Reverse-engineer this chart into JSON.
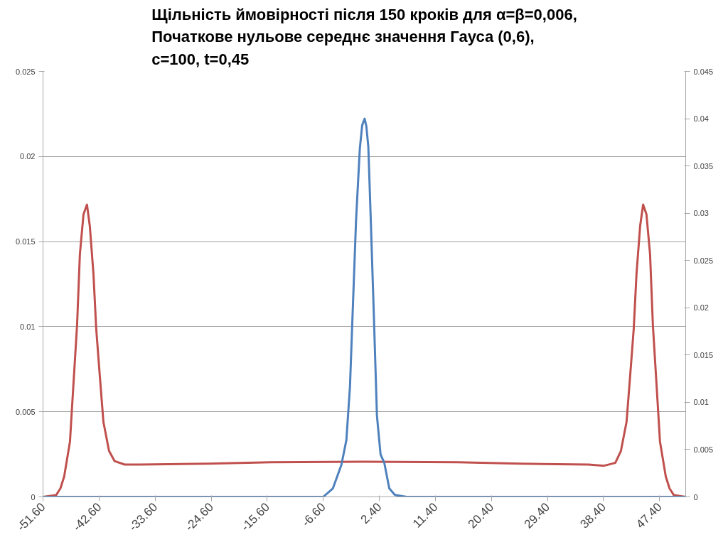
{
  "chart_data": {
    "type": "line",
    "title": "Щільність ймовірності після 150 кроків для α=β=0,006,\nПочаткове нульове середнє значення Гауса (0,6),\nc=100, t=0,45",
    "series": [
      {
        "color": "#c0504d",
        "x": [
          -51.6,
          -49.5,
          -48.8,
          -48.2,
          -47.27,
          -46.9,
          -46.13,
          -45.68,
          -45.1,
          -44.54,
          -44.08,
          -43.5,
          -43.06,
          -42.5,
          -41.9,
          -41.0,
          -40.1,
          -38.5,
          -36,
          -25,
          -15,
          0,
          15,
          25,
          36,
          38.5,
          40.3,
          41.2,
          42.1,
          42.7,
          43.26,
          43.7,
          44.28,
          44.76,
          45.3,
          45.88,
          46.33,
          47.1,
          47.47,
          48.4,
          49.0,
          49.7,
          51.6
        ],
        "values": [
          0,
          0.0001,
          0.0005,
          0.0012,
          0.00325,
          0.0055,
          0.0101,
          0.01425,
          0.0166,
          0.01717,
          0.0159,
          0.0131,
          0.0099,
          0.0072,
          0.0044,
          0.0027,
          0.0021,
          0.0019,
          0.0019,
          0.00195,
          0.00203,
          0.00207,
          0.00203,
          0.00195,
          0.0019,
          0.00183,
          0.002,
          0.0027,
          0.0044,
          0.0072,
          0.0099,
          0.0131,
          0.0159,
          0.01717,
          0.0166,
          0.01425,
          0.0101,
          0.0055,
          0.00325,
          0.0012,
          0.0005,
          0.0001,
          0
        ]
      },
      {
        "color": "#4f81bd",
        "axis": "y2",
        "x": [
          -51.6,
          -6.6,
          -5.05,
          -3.68,
          -2.89,
          -2.31,
          -1.91,
          -1.33,
          -0.73,
          -0.35,
          0.05,
          0.32,
          0.64,
          1.03,
          1.54,
          2.02,
          2.6,
          3.2,
          4.0,
          4.9,
          6.8,
          51.6
        ],
        "values": [
          0,
          0,
          0.0009,
          0.0034,
          0.006,
          0.01165,
          0.0189,
          0.0293,
          0.0368,
          0.0393,
          0.04,
          0.0392,
          0.037,
          0.0293,
          0.0189,
          0.0086,
          0.0045,
          0.0036,
          0.0009,
          0.0002,
          0,
          0
        ]
      }
    ],
    "xlim": [
      -51.6,
      51.6
    ],
    "xticks": [
      {
        "value": -51.6,
        "label": "-51.60"
      },
      {
        "value": -42.6,
        "label": "-42.60"
      },
      {
        "value": -33.6,
        "label": "-33.60"
      },
      {
        "value": -24.6,
        "label": "-24.60"
      },
      {
        "value": -15.6,
        "label": "-15.60"
      },
      {
        "value": -6.6,
        "label": "-6.60"
      },
      {
        "value": 2.4,
        "label": "2.40"
      },
      {
        "value": 11.4,
        "label": "11.40"
      },
      {
        "value": 20.4,
        "label": "20.40"
      },
      {
        "value": 29.4,
        "label": "29.40"
      },
      {
        "value": 38.4,
        "label": "38.40"
      },
      {
        "value": 47.4,
        "label": "47.40"
      }
    ],
    "ylim": [
      0,
      0.025
    ],
    "yticks": [
      0,
      0.005,
      0.01,
      0.015,
      0.02,
      0.025
    ],
    "y2lim": [
      0,
      0.045
    ],
    "y2ticks": [
      0,
      0.005,
      0.01,
      0.015,
      0.02,
      0.025,
      0.03,
      0.035,
      0.04,
      0.045
    ],
    "grid": "y",
    "marker": "none",
    "line_style": "solid"
  }
}
